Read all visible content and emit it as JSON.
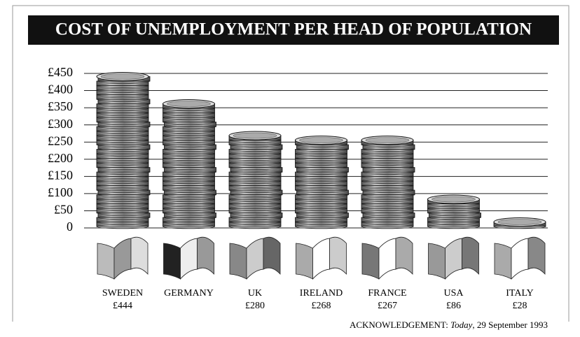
{
  "chart_data": {
    "type": "coin-stack",
    "title": "COST OF UNEMPLOYMENT PER HEAD OF POPULATION",
    "categories": [
      "SWEDEN",
      "GERMANY",
      "UK",
      "IRELAND",
      "FRANCE",
      "USA",
      "ITALY"
    ],
    "values": [
      444,
      365,
      280,
      268,
      267,
      86,
      28
    ],
    "value_labels": [
      "£444",
      null,
      "£280",
      "£268",
      "£267",
      "£86",
      "£28"
    ],
    "ylim": [
      0,
      450
    ],
    "yticks": [
      0,
      {
        "value": 50,
        "label": "£50"
      },
      {
        "value": 100,
        "label": "£100"
      },
      {
        "value": 150,
        "label": "£150"
      },
      {
        "value": 200,
        "label": "£200"
      },
      {
        "value": 250,
        "label": "£250"
      },
      {
        "value": 300,
        "label": "£300"
      },
      {
        "value": 350,
        "label": "£350"
      },
      {
        "value": 400,
        "label": "£400"
      },
      {
        "value": 450,
        "label": "£450"
      }
    ],
    "grid": true,
    "source": {
      "label": "ACKNOWLEDGEMENT: ",
      "publication": "Today",
      "date": ", 29 September 1993"
    }
  }
}
